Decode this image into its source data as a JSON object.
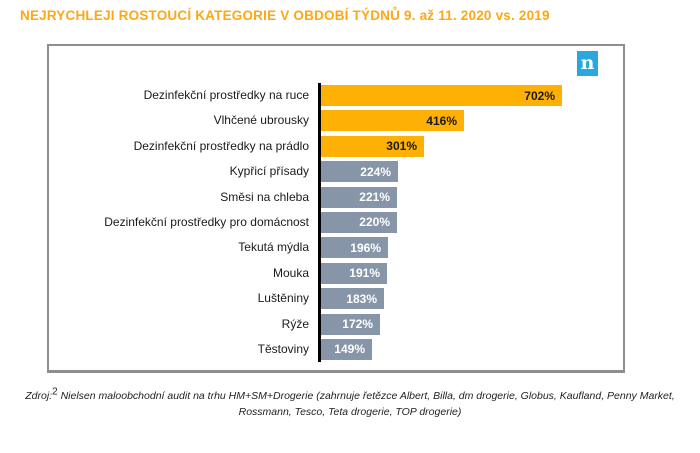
{
  "title": {
    "text": "NEJRYCHLEJI ROSTOUCÍ KATEGORIE V OBDOBÍ TÝDNŮ 9. až 11. 2020 vs. 2019",
    "color": "#FFA713"
  },
  "logo": {
    "name": "nielsen-logo",
    "letter": "n",
    "background": "#29A8E0"
  },
  "chart_data": {
    "type": "bar",
    "orientation": "horizontal",
    "title": "NEJRYCHLEJI ROSTOUCÍ KATEGORIE V OBDOBÍ TÝDNŮ 9. až 11. 2020 vs. 2019",
    "value_suffix": "%",
    "value_range": [
      0,
      702
    ],
    "grid": false,
    "legend": false,
    "categories": [
      "Dezinfekční prostředky na ruce",
      "Vlhčené ubrousky",
      "Dezinfekční prostředky na prádlo",
      "Kypřicí přísady",
      "Směsi na chleba",
      "Dezinfekční prostředky pro domácnost",
      "Tekutá mýdla",
      "Mouka",
      "Luštěniny",
      "Rýže",
      "Těstoviny"
    ],
    "values": [
      702,
      416,
      301,
      224,
      221,
      220,
      196,
      191,
      183,
      172,
      149
    ],
    "bars": [
      {
        "label": "Dezinfekční prostředky na ruce",
        "value": 702,
        "display": "702%",
        "highlighted": true
      },
      {
        "label": "Vlhčené ubrousky",
        "value": 416,
        "display": "416%",
        "highlighted": true
      },
      {
        "label": "Dezinfekční prostředky na prádlo",
        "value": 301,
        "display": "301%",
        "highlighted": true
      },
      {
        "label": "Kypřicí přísady",
        "value": 224,
        "display": "224%",
        "highlighted": false
      },
      {
        "label": "Směsi na chleba",
        "value": 221,
        "display": "221%",
        "highlighted": false
      },
      {
        "label": "Dezinfekční prostředky pro domácnost",
        "value": 220,
        "display": "220%",
        "highlighted": false
      },
      {
        "label": "Tekutá mýdla",
        "value": 196,
        "display": "196%",
        "highlighted": false
      },
      {
        "label": "Mouka",
        "value": 191,
        "display": "191%",
        "highlighted": false
      },
      {
        "label": "Luštěniny",
        "value": 183,
        "display": "183%",
        "highlighted": false
      },
      {
        "label": "Rýže",
        "value": 172,
        "display": "172%",
        "highlighted": false
      },
      {
        "label": "Těstoviny",
        "value": 149,
        "display": "149%",
        "highlighted": false
      }
    ],
    "colors": {
      "highlight_bar": "#FFB005",
      "normal_bar": "#8795A9",
      "highlight_label": "#1a1a1a",
      "normal_label": "#ffffff",
      "axis_line": "#000000"
    }
  },
  "footer": {
    "prefix": "Zdroj:",
    "superscript": "2",
    "text": "Nielsen maloobchodní audit na trhu HM+SM+Drogerie (zahrnuje řetězce Albert, Billa, dm drogerie, Globus, Kaufland, Penny Market, Rossmann, Tesco, Teta drogerie, TOP drogerie)"
  }
}
